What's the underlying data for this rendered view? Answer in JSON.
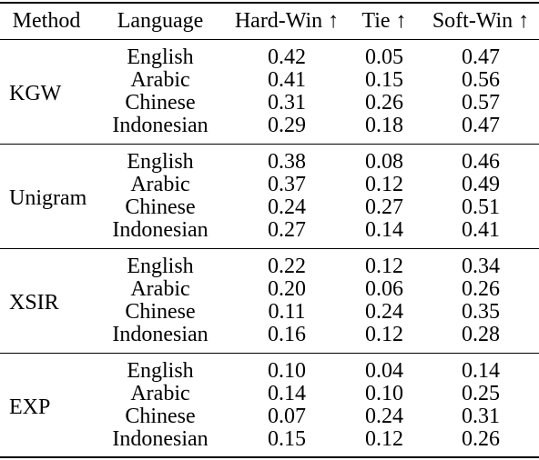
{
  "header": {
    "method": "Method",
    "language": "Language",
    "hard_win": "Hard-Win ↑",
    "tie": "Tie ↑",
    "soft_win": "Soft-Win ↑"
  },
  "groups": [
    {
      "method": "KGW",
      "rows": [
        {
          "language": "English",
          "hard_win": "0.42",
          "tie": "0.05",
          "soft_win": "0.47"
        },
        {
          "language": "Arabic",
          "hard_win": "0.41",
          "tie": "0.15",
          "soft_win": "0.56"
        },
        {
          "language": "Chinese",
          "hard_win": "0.31",
          "tie": "0.26",
          "soft_win": "0.57"
        },
        {
          "language": "Indonesian",
          "hard_win": "0.29",
          "tie": "0.18",
          "soft_win": "0.47"
        }
      ]
    },
    {
      "method": "Unigram",
      "rows": [
        {
          "language": "English",
          "hard_win": "0.38",
          "tie": "0.08",
          "soft_win": "0.46"
        },
        {
          "language": "Arabic",
          "hard_win": "0.37",
          "tie": "0.12",
          "soft_win": "0.49"
        },
        {
          "language": "Chinese",
          "hard_win": "0.24",
          "tie": "0.27",
          "soft_win": "0.51"
        },
        {
          "language": "Indonesian",
          "hard_win": "0.27",
          "tie": "0.14",
          "soft_win": "0.41"
        }
      ]
    },
    {
      "method": "XSIR",
      "rows": [
        {
          "language": "English",
          "hard_win": "0.22",
          "tie": "0.12",
          "soft_win": "0.34"
        },
        {
          "language": "Arabic",
          "hard_win": "0.20",
          "tie": "0.06",
          "soft_win": "0.26"
        },
        {
          "language": "Chinese",
          "hard_win": "0.11",
          "tie": "0.24",
          "soft_win": "0.35"
        },
        {
          "language": "Indonesian",
          "hard_win": "0.16",
          "tie": "0.12",
          "soft_win": "0.28"
        }
      ]
    },
    {
      "method": "EXP",
      "rows": [
        {
          "language": "English",
          "hard_win": "0.10",
          "tie": "0.04",
          "soft_win": "0.14"
        },
        {
          "language": "Arabic",
          "hard_win": "0.14",
          "tie": "0.10",
          "soft_win": "0.25"
        },
        {
          "language": "Chinese",
          "hard_win": "0.07",
          "tie": "0.24",
          "soft_win": "0.31"
        },
        {
          "language": "Indonesian",
          "hard_win": "0.15",
          "tie": "0.12",
          "soft_win": "0.26"
        }
      ]
    }
  ]
}
